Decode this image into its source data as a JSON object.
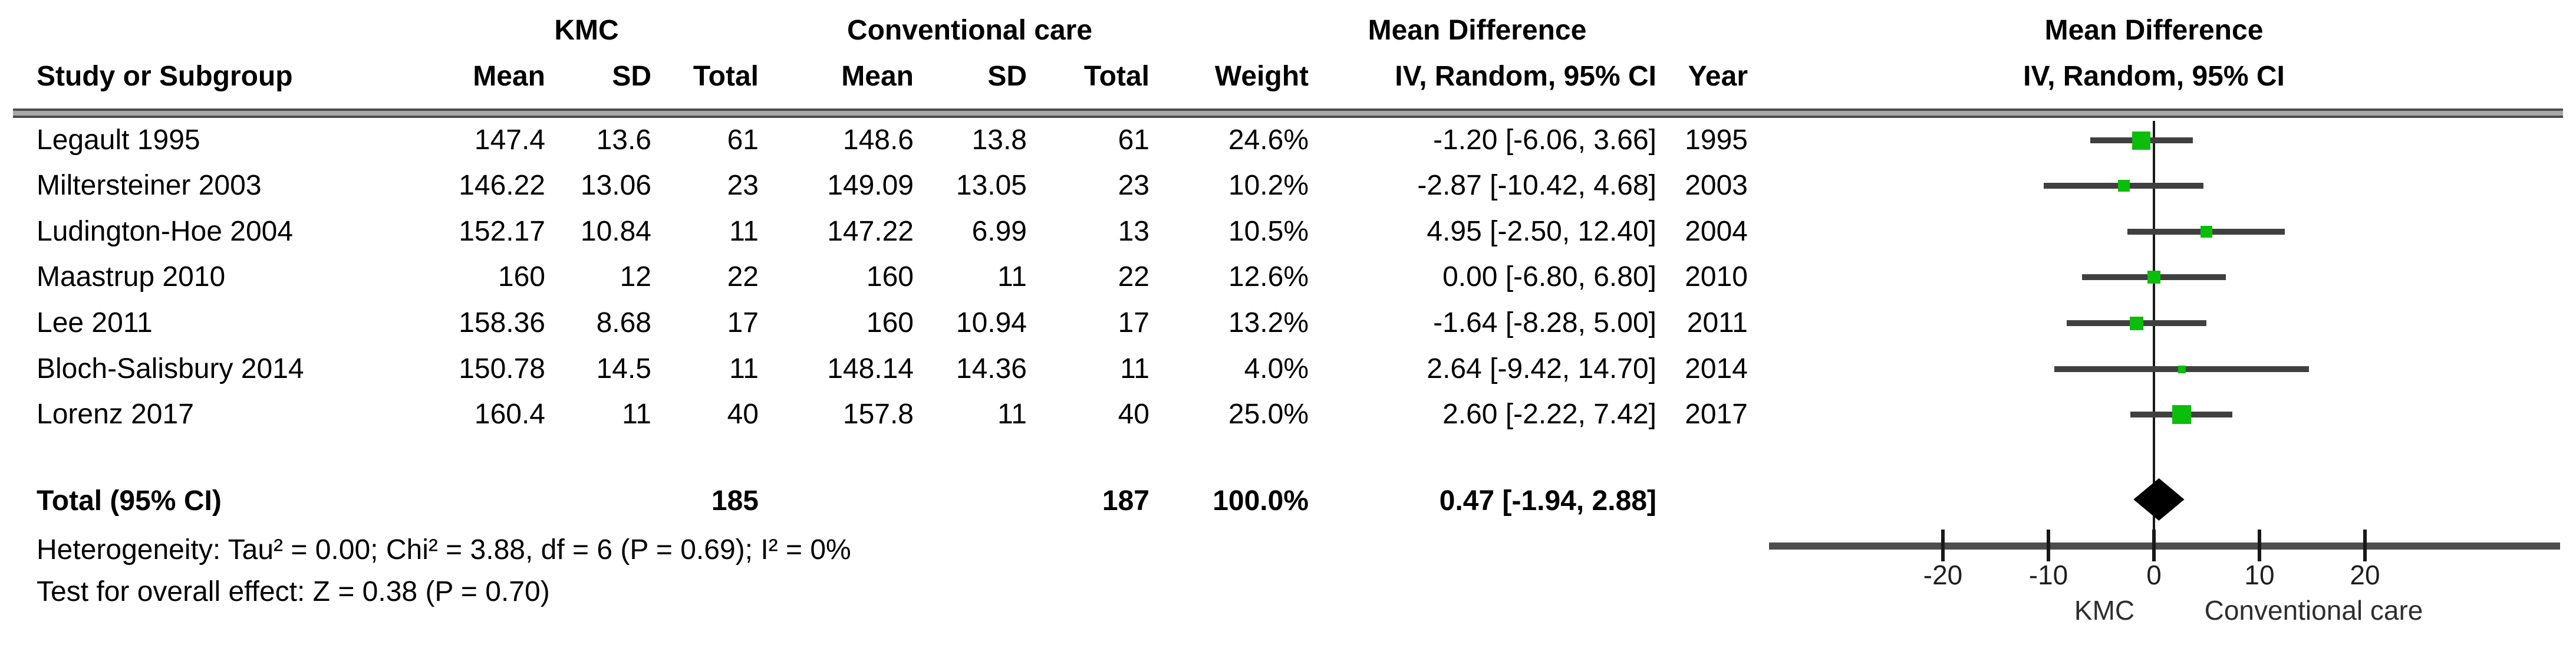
{
  "figure": {
    "group_headers": {
      "kmc": "KMC",
      "conventional": "Conventional care",
      "md_table": "Mean Difference",
      "md_plot": "Mean Difference"
    },
    "column_headers": {
      "study": "Study or Subgroup",
      "kmc_mean": "Mean",
      "kmc_sd": "SD",
      "kmc_total": "Total",
      "conv_mean": "Mean",
      "conv_sd": "SD",
      "conv_total": "Total",
      "weight": "Weight",
      "ci": "IV, Random, 95% CI",
      "year": "Year",
      "ci_plot": "IV, Random, 95% CI"
    },
    "rows": [
      {
        "study": "Legault 1995",
        "kmc_mean": "147.4",
        "kmc_sd": "13.6",
        "kmc_total": "61",
        "conv_mean": "148.6",
        "conv_sd": "13.8",
        "conv_total": "61",
        "weight": "24.6%",
        "ci": "-1.20 [-6.06, 3.66]",
        "year": "1995"
      },
      {
        "study": "Miltersteiner 2003",
        "kmc_mean": "146.22",
        "kmc_sd": "13.06",
        "kmc_total": "23",
        "conv_mean": "149.09",
        "conv_sd": "13.05",
        "conv_total": "23",
        "weight": "10.2%",
        "ci": "-2.87 [-10.42, 4.68]",
        "year": "2003"
      },
      {
        "study": "Ludington-Hoe 2004",
        "kmc_mean": "152.17",
        "kmc_sd": "10.84",
        "kmc_total": "11",
        "conv_mean": "147.22",
        "conv_sd": "6.99",
        "conv_total": "13",
        "weight": "10.5%",
        "ci": "4.95 [-2.50, 12.40]",
        "year": "2004"
      },
      {
        "study": "Maastrup 2010",
        "kmc_mean": "160",
        "kmc_sd": "12",
        "kmc_total": "22",
        "conv_mean": "160",
        "conv_sd": "11",
        "conv_total": "22",
        "weight": "12.6%",
        "ci": "0.00 [-6.80, 6.80]",
        "year": "2010"
      },
      {
        "study": "Lee 2011",
        "kmc_mean": "158.36",
        "kmc_sd": "8.68",
        "kmc_total": "17",
        "conv_mean": "160",
        "conv_sd": "10.94",
        "conv_total": "17",
        "weight": "13.2%",
        "ci": "-1.64 [-8.28, 5.00]",
        "year": "2011"
      },
      {
        "study": "Bloch-Salisbury 2014",
        "kmc_mean": "150.78",
        "kmc_sd": "14.5",
        "kmc_total": "11",
        "conv_mean": "148.14",
        "conv_sd": "14.36",
        "conv_total": "11",
        "weight": "4.0%",
        "ci": "2.64 [-9.42, 14.70]",
        "year": "2014"
      },
      {
        "study": "Lorenz 2017",
        "kmc_mean": "160.4",
        "kmc_sd": "11",
        "kmc_total": "40",
        "conv_mean": "157.8",
        "conv_sd": "11",
        "conv_total": "40",
        "weight": "25.0%",
        "ci": "2.60 [-2.22, 7.42]",
        "year": "2017"
      }
    ],
    "total": {
      "label": "Total (95% CI)",
      "kmc_total": "185",
      "conv_total": "187",
      "weight": "100.0%",
      "ci": "0.47 [-1.94, 2.88]"
    },
    "heterogeneity": "Heterogeneity: Tau² = 0.00; Chi² = 3.88, df = 6 (P = 0.69); I² = 0%",
    "overall_effect": "Test for overall effect: Z = 0.38 (P = 0.70)"
  },
  "chart_data": {
    "type": "forest",
    "title": "Mean Difference",
    "effect_measure": "IV, Random, 95% CI",
    "studies": [
      {
        "name": "Legault 1995",
        "md": -1.2,
        "ci_low": -6.06,
        "ci_high": 3.66,
        "weight": 24.6,
        "year": 1995
      },
      {
        "name": "Miltersteiner 2003",
        "md": -2.87,
        "ci_low": -10.42,
        "ci_high": 4.68,
        "weight": 10.2,
        "year": 2003
      },
      {
        "name": "Ludington-Hoe 2004",
        "md": 4.95,
        "ci_low": -2.5,
        "ci_high": 12.4,
        "weight": 10.5,
        "year": 2004
      },
      {
        "name": "Maastrup 2010",
        "md": 0.0,
        "ci_low": -6.8,
        "ci_high": 6.8,
        "weight": 12.6,
        "year": 2010
      },
      {
        "name": "Lee 2011",
        "md": -1.64,
        "ci_low": -8.28,
        "ci_high": 5.0,
        "weight": 13.2,
        "year": 2011
      },
      {
        "name": "Bloch-Salisbury 2014",
        "md": 2.64,
        "ci_low": -9.42,
        "ci_high": 14.7,
        "weight": 4.0,
        "year": 2014
      },
      {
        "name": "Lorenz 2017",
        "md": 2.6,
        "ci_low": -2.22,
        "ci_high": 7.42,
        "weight": 25.0,
        "year": 2017
      }
    ],
    "total": {
      "md": 0.47,
      "ci_low": -1.94,
      "ci_high": 2.88,
      "kmc_total": 185,
      "conv_total": 187,
      "weight": 100.0
    },
    "axis": {
      "ticks": [
        -20,
        -10,
        0,
        10,
        20
      ],
      "range": [
        -36.5,
        38.5
      ],
      "left_label": "KMC",
      "right_label": "Conventional care"
    },
    "colors": {
      "square": "#0cbd0c",
      "ci_line": "#404040",
      "axis_line": "#4d4d4d",
      "tick": "#181818",
      "diamond": "#000000"
    }
  }
}
